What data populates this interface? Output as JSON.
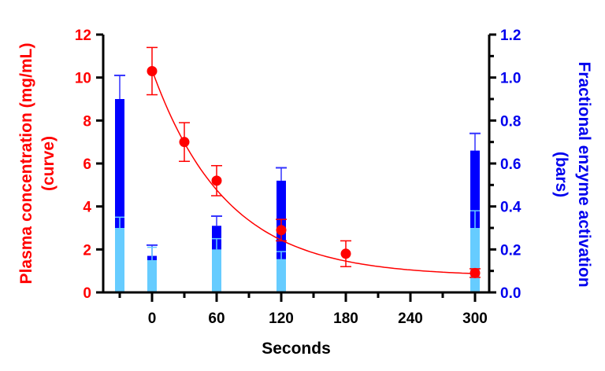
{
  "chart_data": {
    "type": "bar+line",
    "title": "",
    "xlabel": "Seconds",
    "ylabel_left": [
      "Plasma concentration  (mg/mL)",
      "(curve)"
    ],
    "ylabel_right": [
      "Fractional enzyme activation",
      "(bars)"
    ],
    "x_ticks": [
      0,
      60,
      120,
      180,
      240,
      300
    ],
    "x_tick_labels": [
      "0",
      "60",
      "120",
      "180",
      "240",
      "300"
    ],
    "x_range": [
      -40,
      320
    ],
    "x_minor_step": 30,
    "ylim_left": [
      0,
      12
    ],
    "y_left_ticks": [
      0,
      2,
      4,
      6,
      8,
      10,
      12
    ],
    "ylim_right": [
      0,
      1.2
    ],
    "y_right_ticks": [
      "0.0",
      "0.2",
      "0.4",
      "0.6",
      "0.8",
      "1.0",
      "1.2"
    ],
    "y_right_minor_step": 0.1,
    "grid": false,
    "colors": {
      "curve": "#ff0000",
      "bar_dark": "#0000ff",
      "bar_light": "#66ccff",
      "left_axis_text": "#ff0000",
      "right_axis_text": "#0000ee",
      "axis": "#000000"
    },
    "curve_series": {
      "name": "Plasma concentration (mg/mL)",
      "x": [
        0,
        30,
        60,
        120,
        180,
        300
      ],
      "y": [
        10.3,
        7.0,
        5.2,
        2.9,
        1.8,
        0.9
      ],
      "err_low": [
        9.2,
        6.1,
        4.5,
        2.4,
        1.2,
        0.7
      ],
      "err_high": [
        11.4,
        7.9,
        5.9,
        3.4,
        2.4,
        1.1
      ],
      "fit": "exponential decay"
    },
    "bar_series": [
      {
        "name": "Fractional enzyme activation (dark)",
        "x": [
          -30,
          0,
          60,
          120,
          300
        ],
        "values": [
          0.9,
          0.17,
          0.31,
          0.52,
          0.66
        ],
        "err_high": [
          1.01,
          0.22,
          0.355,
          0.58,
          0.74
        ]
      },
      {
        "name": "Fractional enzyme activation (light)",
        "x": [
          -30,
          0,
          60,
          120,
          300
        ],
        "values": [
          0.3,
          0.15,
          0.2,
          0.155,
          0.3
        ],
        "err_high": [
          0.35,
          0.21,
          0.25,
          0.19,
          0.38
        ]
      }
    ]
  }
}
